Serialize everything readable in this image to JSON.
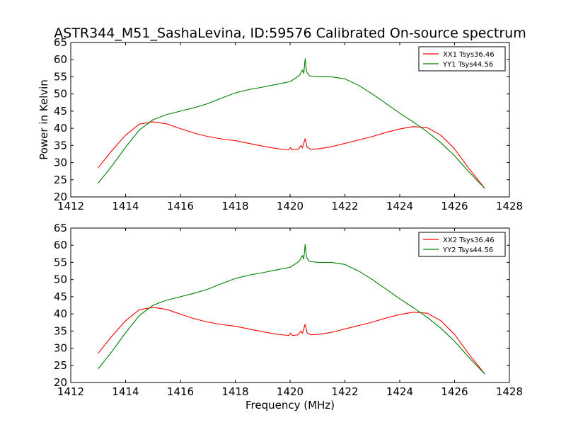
{
  "figure": {
    "title": "ASTR344_M51_SashaLevina, ID:59576 Calibrated On-source spectrum",
    "xlabel": "Frequency (MHz)",
    "ylabel": "Power in Kelvin"
  },
  "chart_data": [
    {
      "type": "line",
      "title": "ASTR344_M51_SashaLevina, ID:59576 Calibrated On-source spectrum",
      "xlabel": "",
      "ylabel": "Power in Kelvin",
      "xlim": [
        1412,
        1428
      ],
      "ylim": [
        20,
        65
      ],
      "x_ticks": [
        "1412",
        "1414",
        "1416",
        "1418",
        "1420",
        "1422",
        "1424",
        "1426",
        "1428"
      ],
      "y_ticks": [
        "20",
        "25",
        "30",
        "35",
        "40",
        "45",
        "50",
        "55",
        "60",
        "65"
      ],
      "grid": false,
      "legend_position": "top-right",
      "series": [
        {
          "name": "XX1 Tsys36.46",
          "color": "#ff0000",
          "points": [
            [
              1413.0,
              28.5
            ],
            [
              1413.5,
              33.5
            ],
            [
              1414.0,
              38.0
            ],
            [
              1414.5,
              41.2
            ],
            [
              1415.0,
              41.9
            ],
            [
              1415.5,
              41.3
            ],
            [
              1416.0,
              39.9
            ],
            [
              1416.5,
              38.6
            ],
            [
              1417.0,
              37.6
            ],
            [
              1417.5,
              36.9
            ],
            [
              1418.0,
              36.4
            ],
            [
              1418.5,
              35.6
            ],
            [
              1419.0,
              34.8
            ],
            [
              1419.5,
              34.1
            ],
            [
              1419.95,
              33.7
            ],
            [
              1420.02,
              34.4
            ],
            [
              1420.08,
              33.7
            ],
            [
              1420.3,
              33.9
            ],
            [
              1420.4,
              35.0
            ],
            [
              1420.45,
              34.3
            ],
            [
              1420.55,
              37.0
            ],
            [
              1420.62,
              34.5
            ],
            [
              1420.75,
              33.9
            ],
            [
              1421.0,
              34.0
            ],
            [
              1421.5,
              34.6
            ],
            [
              1422.0,
              35.6
            ],
            [
              1422.5,
              36.6
            ],
            [
              1423.0,
              37.6
            ],
            [
              1423.5,
              38.8
            ],
            [
              1424.0,
              39.8
            ],
            [
              1424.5,
              40.5
            ],
            [
              1425.0,
              40.2
            ],
            [
              1425.5,
              38.0
            ],
            [
              1426.0,
              34.0
            ],
            [
              1426.5,
              28.5
            ],
            [
              1427.1,
              22.5
            ]
          ]
        },
        {
          "name": "YY1 Tsys44.56",
          "color": "#008000",
          "points": [
            [
              1413.0,
              24.0
            ],
            [
              1413.5,
              29.0
            ],
            [
              1414.0,
              34.5
            ],
            [
              1414.5,
              39.5
            ],
            [
              1415.0,
              42.5
            ],
            [
              1415.5,
              44.0
            ],
            [
              1416.0,
              45.0
            ],
            [
              1416.5,
              46.0
            ],
            [
              1417.0,
              47.2
            ],
            [
              1417.5,
              48.8
            ],
            [
              1418.0,
              50.3
            ],
            [
              1418.5,
              51.3
            ],
            [
              1419.0,
              52.0
            ],
            [
              1419.5,
              52.8
            ],
            [
              1420.0,
              53.6
            ],
            [
              1420.2,
              54.6
            ],
            [
              1420.35,
              55.5
            ],
            [
              1420.45,
              57.0
            ],
            [
              1420.5,
              56.0
            ],
            [
              1420.55,
              60.3
            ],
            [
              1420.6,
              56.5
            ],
            [
              1420.7,
              55.3
            ],
            [
              1421.0,
              55.0
            ],
            [
              1421.5,
              55.0
            ],
            [
              1422.0,
              54.4
            ],
            [
              1422.5,
              52.5
            ],
            [
              1423.0,
              50.0
            ],
            [
              1423.5,
              47.2
            ],
            [
              1424.0,
              44.4
            ],
            [
              1424.5,
              41.8
            ],
            [
              1425.0,
              39.0
            ],
            [
              1425.5,
              35.8
            ],
            [
              1426.0,
              32.0
            ],
            [
              1426.5,
              27.5
            ],
            [
              1427.1,
              22.5
            ]
          ]
        }
      ]
    },
    {
      "type": "line",
      "title": "",
      "xlabel": "Frequency (MHz)",
      "ylabel": "",
      "xlim": [
        1412,
        1428
      ],
      "ylim": [
        20,
        65
      ],
      "x_ticks": [
        "1412",
        "1414",
        "1416",
        "1418",
        "1420",
        "1422",
        "1424",
        "1426",
        "1428"
      ],
      "y_ticks": [
        "20",
        "25",
        "30",
        "35",
        "40",
        "45",
        "50",
        "55",
        "60",
        "65"
      ],
      "grid": false,
      "legend_position": "top-right",
      "series": [
        {
          "name": "XX2 Tsys36.46",
          "color": "#ff0000",
          "points": [
            [
              1413.0,
              28.5
            ],
            [
              1413.5,
              33.5
            ],
            [
              1414.0,
              38.0
            ],
            [
              1414.5,
              41.2
            ],
            [
              1415.0,
              41.9
            ],
            [
              1415.5,
              41.3
            ],
            [
              1416.0,
              39.9
            ],
            [
              1416.5,
              38.6
            ],
            [
              1417.0,
              37.6
            ],
            [
              1417.5,
              36.9
            ],
            [
              1418.0,
              36.4
            ],
            [
              1418.5,
              35.6
            ],
            [
              1419.0,
              34.8
            ],
            [
              1419.5,
              34.1
            ],
            [
              1419.95,
              33.7
            ],
            [
              1420.02,
              34.4
            ],
            [
              1420.08,
              33.7
            ],
            [
              1420.3,
              33.9
            ],
            [
              1420.4,
              35.0
            ],
            [
              1420.45,
              34.3
            ],
            [
              1420.55,
              37.0
            ],
            [
              1420.62,
              34.5
            ],
            [
              1420.75,
              33.9
            ],
            [
              1421.0,
              34.0
            ],
            [
              1421.5,
              34.6
            ],
            [
              1422.0,
              35.6
            ],
            [
              1422.5,
              36.6
            ],
            [
              1423.0,
              37.6
            ],
            [
              1423.5,
              38.8
            ],
            [
              1424.0,
              39.8
            ],
            [
              1424.5,
              40.5
            ],
            [
              1425.0,
              40.2
            ],
            [
              1425.5,
              38.0
            ],
            [
              1426.0,
              34.0
            ],
            [
              1426.5,
              28.5
            ],
            [
              1427.1,
              22.5
            ]
          ]
        },
        {
          "name": "YY2 Tsys44.56",
          "color": "#008000",
          "points": [
            [
              1413.0,
              24.0
            ],
            [
              1413.5,
              29.0
            ],
            [
              1414.0,
              34.5
            ],
            [
              1414.5,
              39.5
            ],
            [
              1415.0,
              42.5
            ],
            [
              1415.5,
              44.0
            ],
            [
              1416.0,
              45.0
            ],
            [
              1416.5,
              46.0
            ],
            [
              1417.0,
              47.2
            ],
            [
              1417.5,
              48.8
            ],
            [
              1418.0,
              50.3
            ],
            [
              1418.5,
              51.3
            ],
            [
              1419.0,
              52.0
            ],
            [
              1419.5,
              52.8
            ],
            [
              1420.0,
              53.6
            ],
            [
              1420.2,
              54.6
            ],
            [
              1420.35,
              55.5
            ],
            [
              1420.45,
              57.0
            ],
            [
              1420.5,
              56.0
            ],
            [
              1420.55,
              60.3
            ],
            [
              1420.6,
              56.5
            ],
            [
              1420.7,
              55.3
            ],
            [
              1421.0,
              55.0
            ],
            [
              1421.5,
              55.0
            ],
            [
              1422.0,
              54.4
            ],
            [
              1422.5,
              52.5
            ],
            [
              1423.0,
              50.0
            ],
            [
              1423.5,
              47.2
            ],
            [
              1424.0,
              44.4
            ],
            [
              1424.5,
              41.8
            ],
            [
              1425.0,
              39.0
            ],
            [
              1425.5,
              35.8
            ],
            [
              1426.0,
              32.0
            ],
            [
              1426.5,
              27.5
            ],
            [
              1427.1,
              22.5
            ]
          ]
        }
      ]
    }
  ]
}
